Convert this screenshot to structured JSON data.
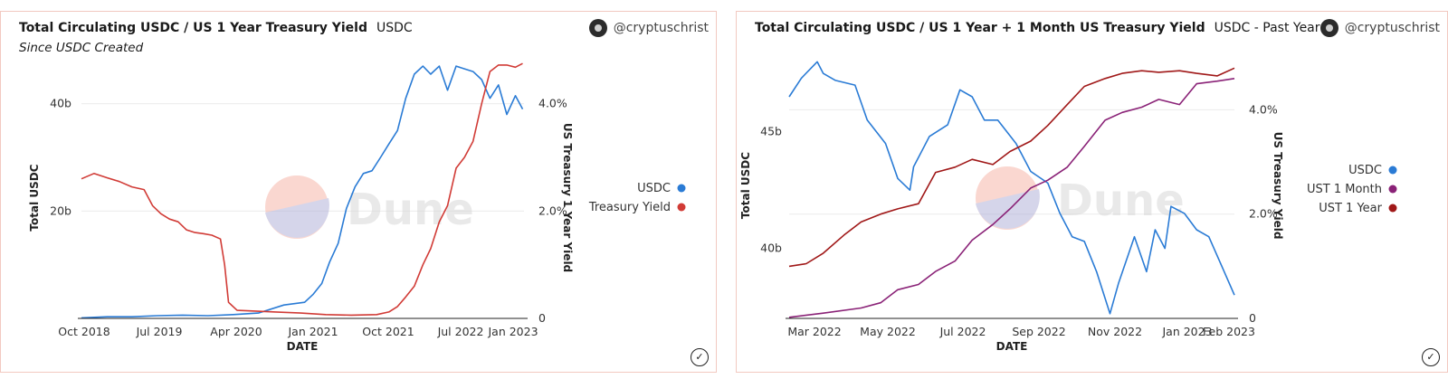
{
  "chart_data": [
    {
      "type": "line",
      "title": "Total Circulating USDC / US 1 Year Treasury Yield",
      "subtitle_label": "USDC",
      "subtitle": "Since USDC Created",
      "author": "@cryptuschrist",
      "xlabel": "DATE",
      "ylabel": "Total USDC",
      "y2label": "US Treasury 1 Year Yield",
      "x_ticks": [
        "Oct 2018",
        "Jul 2019",
        "Apr 2020",
        "Jan 2021",
        "Oct 2021",
        "Jul 2022",
        "Jan 2023"
      ],
      "y_ticks": [
        "20b",
        "40b"
      ],
      "y2_ticks": [
        "0",
        "2.0%",
        "4.0%"
      ],
      "xlim": [
        "2018-10-01",
        "2023-02-15"
      ],
      "ylim": [
        0,
        45
      ],
      "y2lim": [
        0,
        4.5
      ],
      "legend_position": "right",
      "series": [
        {
          "name": "USDC",
          "color": "#2a7bd5",
          "axis": "left",
          "points": [
            [
              "2018-10-01",
              0.1
            ],
            [
              "2019-01-01",
              0.3
            ],
            [
              "2019-04-01",
              0.3
            ],
            [
              "2019-07-01",
              0.5
            ],
            [
              "2019-10-01",
              0.6
            ],
            [
              "2020-01-01",
              0.5
            ],
            [
              "2020-04-01",
              0.7
            ],
            [
              "2020-07-01",
              1.0
            ],
            [
              "2020-10-01",
              2.5
            ],
            [
              "2020-12-15",
              3.0
            ],
            [
              "2021-01-15",
              4.5
            ],
            [
              "2021-02-15",
              6.5
            ],
            [
              "2021-03-15",
              10.5
            ],
            [
              "2021-04-15",
              14.0
            ],
            [
              "2021-05-15",
              20.5
            ],
            [
              "2021-06-15",
              24.5
            ],
            [
              "2021-07-15",
              27.0
            ],
            [
              "2021-08-15",
              27.5
            ],
            [
              "2021-09-15",
              30.0
            ],
            [
              "2021-10-15",
              32.5
            ],
            [
              "2021-11-15",
              35.0
            ],
            [
              "2021-12-15",
              41.0
            ],
            [
              "2022-01-15",
              45.5
            ],
            [
              "2022-02-15",
              47.0
            ],
            [
              "2022-03-15",
              45.5
            ],
            [
              "2022-04-15",
              47.0
            ],
            [
              "2022-05-15",
              42.5
            ],
            [
              "2022-06-15",
              47.0
            ],
            [
              "2022-07-15",
              46.5
            ],
            [
              "2022-08-15",
              46.0
            ],
            [
              "2022-09-15",
              44.5
            ],
            [
              "2022-10-15",
              41.0
            ],
            [
              "2022-11-15",
              43.5
            ],
            [
              "2022-12-15",
              38.0
            ],
            [
              "2023-01-15",
              41.5
            ],
            [
              "2023-02-10",
              39.0
            ]
          ]
        },
        {
          "name": "Treasury Yield",
          "color": "#d13b36",
          "axis": "right",
          "points": [
            [
              "2018-10-01",
              2.6
            ],
            [
              "2018-11-15",
              2.7
            ],
            [
              "2019-01-01",
              2.62
            ],
            [
              "2019-02-15",
              2.55
            ],
            [
              "2019-04-01",
              2.45
            ],
            [
              "2019-05-15",
              2.4
            ],
            [
              "2019-06-15",
              2.1
            ],
            [
              "2019-07-15",
              1.95
            ],
            [
              "2019-08-15",
              1.85
            ],
            [
              "2019-09-15",
              1.8
            ],
            [
              "2019-10-15",
              1.65
            ],
            [
              "2019-11-15",
              1.6
            ],
            [
              "2019-12-15",
              1.58
            ],
            [
              "2020-01-15",
              1.55
            ],
            [
              "2020-02-15",
              1.48
            ],
            [
              "2020-03-01",
              1.0
            ],
            [
              "2020-03-15",
              0.3
            ],
            [
              "2020-04-15",
              0.15
            ],
            [
              "2020-06-01",
              0.14
            ],
            [
              "2020-09-01",
              0.12
            ],
            [
              "2020-12-01",
              0.1
            ],
            [
              "2021-03-01",
              0.07
            ],
            [
              "2021-06-01",
              0.06
            ],
            [
              "2021-09-01",
              0.07
            ],
            [
              "2021-10-15",
              0.12
            ],
            [
              "2021-11-15",
              0.22
            ],
            [
              "2021-12-15",
              0.4
            ],
            [
              "2022-01-15",
              0.6
            ],
            [
              "2022-02-15",
              1.0
            ],
            [
              "2022-03-15",
              1.3
            ],
            [
              "2022-04-15",
              1.8
            ],
            [
              "2022-05-15",
              2.1
            ],
            [
              "2022-06-15",
              2.8
            ],
            [
              "2022-07-15",
              3.0
            ],
            [
              "2022-08-15",
              3.3
            ],
            [
              "2022-09-15",
              4.0
            ],
            [
              "2022-10-15",
              4.6
            ],
            [
              "2022-11-15",
              4.72
            ],
            [
              "2022-12-15",
              4.72
            ],
            [
              "2023-01-15",
              4.68
            ],
            [
              "2023-02-10",
              4.75
            ]
          ]
        }
      ]
    },
    {
      "type": "line",
      "title": "Total Circulating USDC / US 1 Year + 1 Month US Treasury Yield",
      "subtitle_label": "USDC - Past Year",
      "author": "@cryptuschrist",
      "xlabel": "DATE",
      "ylabel": "Total USDC",
      "y2label": "US Treasury Yield",
      "x_ticks": [
        "Mar 2022",
        "May 2022",
        "Jul 2022",
        "Sep 2022",
        "Nov 2022",
        "Jan 2023",
        "Feb 2023"
      ],
      "y_ticks": [
        "40b",
        "45b"
      ],
      "y2_ticks": [
        "0",
        "2.0%",
        "4.0%"
      ],
      "xlim": [
        "2022-02-15",
        "2023-02-15"
      ],
      "ylim": [
        37,
        48.4
      ],
      "y2lim": [
        0,
        5.1
      ],
      "legend_position": "right",
      "series": [
        {
          "name": "USDC",
          "color": "#2a7bd5",
          "axis": "left",
          "points": [
            [
              "2022-02-15",
              46.5
            ],
            [
              "2022-02-25",
              47.3
            ],
            [
              "2022-03-10",
              48.0
            ],
            [
              "2022-03-15",
              47.5
            ],
            [
              "2022-03-25",
              47.2
            ],
            [
              "2022-04-10",
              47.0
            ],
            [
              "2022-04-20",
              45.5
            ],
            [
              "2022-05-05",
              44.5
            ],
            [
              "2022-05-15",
              43.0
            ],
            [
              "2022-05-25",
              42.5
            ],
            [
              "2022-05-28",
              43.5
            ],
            [
              "2022-06-10",
              44.8
            ],
            [
              "2022-06-25",
              45.3
            ],
            [
              "2022-07-05",
              46.8
            ],
            [
              "2022-07-15",
              46.5
            ],
            [
              "2022-07-25",
              45.5
            ],
            [
              "2022-08-05",
              45.5
            ],
            [
              "2022-08-20",
              44.5
            ],
            [
              "2022-09-01",
              43.3
            ],
            [
              "2022-09-15",
              42.8
            ],
            [
              "2022-09-25",
              41.5
            ],
            [
              "2022-10-05",
              40.5
            ],
            [
              "2022-10-15",
              40.3
            ],
            [
              "2022-10-25",
              39.0
            ],
            [
              "2022-11-05",
              37.2
            ],
            [
              "2022-11-12",
              38.5
            ],
            [
              "2022-11-25",
              40.5
            ],
            [
              "2022-12-05",
              39.0
            ],
            [
              "2022-12-12",
              40.8
            ],
            [
              "2022-12-20",
              40.0
            ],
            [
              "2022-12-25",
              41.8
            ],
            [
              "2023-01-05",
              41.5
            ],
            [
              "2023-01-15",
              40.8
            ],
            [
              "2023-01-25",
              40.5
            ],
            [
              "2023-02-05",
              39.2
            ],
            [
              "2023-02-15",
              38.0
            ]
          ]
        },
        {
          "name": "UST 1 Month",
          "color": "#8a2277",
          "axis": "right",
          "points": [
            [
              "2022-02-15",
              0.02
            ],
            [
              "2022-03-15",
              0.1
            ],
            [
              "2022-04-15",
              0.2
            ],
            [
              "2022-05-01",
              0.3
            ],
            [
              "2022-05-15",
              0.55
            ],
            [
              "2022-06-01",
              0.65
            ],
            [
              "2022-06-15",
              0.9
            ],
            [
              "2022-07-01",
              1.1
            ],
            [
              "2022-07-15",
              1.5
            ],
            [
              "2022-08-01",
              1.8
            ],
            [
              "2022-08-15",
              2.1
            ],
            [
              "2022-09-01",
              2.5
            ],
            [
              "2022-09-15",
              2.65
            ],
            [
              "2022-10-01",
              2.9
            ],
            [
              "2022-10-15",
              3.3
            ],
            [
              "2022-11-01",
              3.8
            ],
            [
              "2022-11-15",
              3.95
            ],
            [
              "2022-12-01",
              4.05
            ],
            [
              "2022-12-15",
              4.2
            ],
            [
              "2023-01-01",
              4.1
            ],
            [
              "2023-01-15",
              4.5
            ],
            [
              "2023-02-01",
              4.55
            ],
            [
              "2023-02-15",
              4.6
            ]
          ]
        },
        {
          "name": "UST 1 Year",
          "color": "#a01818",
          "axis": "right",
          "points": [
            [
              "2022-02-15",
              1.0
            ],
            [
              "2022-03-01",
              1.05
            ],
            [
              "2022-03-15",
              1.25
            ],
            [
              "2022-04-01",
              1.6
            ],
            [
              "2022-04-15",
              1.85
            ],
            [
              "2022-05-01",
              2.0
            ],
            [
              "2022-05-15",
              2.1
            ],
            [
              "2022-06-01",
              2.2
            ],
            [
              "2022-06-15",
              2.8
            ],
            [
              "2022-07-01",
              2.9
            ],
            [
              "2022-07-15",
              3.05
            ],
            [
              "2022-08-01",
              2.95
            ],
            [
              "2022-08-15",
              3.2
            ],
            [
              "2022-09-01",
              3.4
            ],
            [
              "2022-09-15",
              3.7
            ],
            [
              "2022-10-01",
              4.1
            ],
            [
              "2022-10-15",
              4.45
            ],
            [
              "2022-11-01",
              4.6
            ],
            [
              "2022-11-15",
              4.7
            ],
            [
              "2022-12-01",
              4.75
            ],
            [
              "2022-12-15",
              4.72
            ],
            [
              "2023-01-01",
              4.75
            ],
            [
              "2023-01-15",
              4.7
            ],
            [
              "2023-02-01",
              4.65
            ],
            [
              "2023-02-15",
              4.8
            ]
          ]
        }
      ]
    }
  ]
}
